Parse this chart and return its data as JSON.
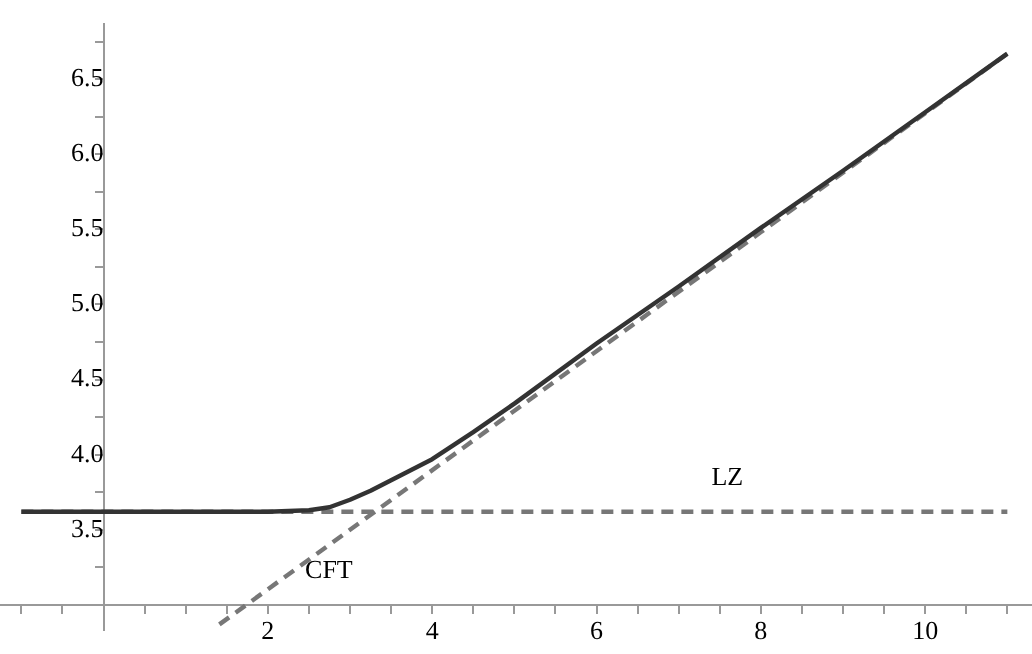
{
  "chart_data": {
    "type": "line",
    "xlim": [
      -1.26,
      11.3
    ],
    "ylim": [
      2.83,
      6.87
    ],
    "xticks": [
      {
        "value": -1,
        "label": null
      },
      {
        "value": -0.5,
        "label": null
      },
      {
        "value": 0.5,
        "label": null
      },
      {
        "value": 1,
        "label": null
      },
      {
        "value": 1.5,
        "label": null
      },
      2,
      {
        "value": 2.5,
        "label": null
      },
      {
        "value": 3,
        "label": null
      },
      {
        "value": 3.5,
        "label": null
      },
      4,
      {
        "value": 4.5,
        "label": null
      },
      {
        "value": 5,
        "label": null
      },
      {
        "value": 5.5,
        "label": null
      },
      6,
      {
        "value": 6.5,
        "label": null
      },
      {
        "value": 7,
        "label": null
      },
      {
        "value": 7.5,
        "label": null
      },
      8,
      {
        "value": 8.5,
        "label": null
      },
      {
        "value": 9,
        "label": null
      },
      {
        "value": 9.5,
        "label": null
      },
      10,
      {
        "value": 10.5,
        "label": null
      },
      {
        "value": 11,
        "label": null
      }
    ],
    "yticks": [
      {
        "value": 3.25,
        "label": null
      },
      3.5,
      {
        "value": 3.75,
        "label": null
      },
      {
        "value": 4,
        "label": "4.0"
      },
      {
        "value": 4.25,
        "label": null
      },
      4.5,
      {
        "value": 4.75,
        "label": null
      },
      {
        "value": 5,
        "label": "5.0"
      },
      {
        "value": 5.25,
        "label": null
      },
      5.5,
      {
        "value": 5.75,
        "label": null
      },
      {
        "value": 6,
        "label": "6.0"
      },
      {
        "value": 6.25,
        "label": null
      },
      6.5,
      {
        "value": 6.75,
        "label": null
      }
    ],
    "grid": false,
    "legend": false,
    "marker": "none",
    "series": [
      {
        "color": "#333333",
        "line_style": "solid",
        "x": [
          -1,
          0,
          1,
          2,
          2.5,
          2.75,
          3,
          3.25,
          3.5,
          3.75,
          4,
          4.5,
          5,
          6,
          7,
          8,
          9,
          10,
          11
        ],
        "values": [
          3.62,
          3.62,
          3.62,
          3.62,
          3.63,
          3.65,
          3.7,
          3.76,
          3.83,
          3.9,
          3.97,
          4.15,
          4.34,
          4.74,
          5.12,
          5.51,
          5.89,
          6.28,
          6.67
        ]
      },
      {
        "name": "LZ",
        "color": "#777777",
        "line_style": "dashed",
        "x": [
          -1,
          11
        ],
        "values": [
          3.62,
          3.62
        ]
      },
      {
        "name": "CFT",
        "color": "#777777",
        "line_style": "dashed",
        "x": [
          1.41,
          11
        ],
        "values": [
          2.87,
          6.67
        ]
      }
    ]
  }
}
